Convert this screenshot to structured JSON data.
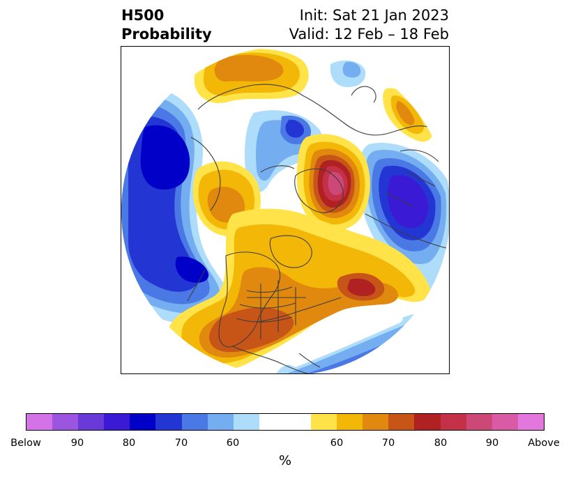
{
  "title": {
    "variable": "H500",
    "subtitle": "Probability",
    "init": "Init: Sat 21 Jan 2023",
    "valid": "Valid: 12 Feb – 18 Feb"
  },
  "colorbar": {
    "colors": [
      "#d472e8",
      "#9b55e0",
      "#6a3ad8",
      "#3a1ad4",
      "#0000c8",
      "#2336d4",
      "#4a78e4",
      "#74aef0",
      "#aedcfb",
      "#ffffff",
      "#ffffff",
      "#ffe348",
      "#f2b707",
      "#e0890e",
      "#c85518",
      "#b02222",
      "#c33048",
      "#cc4877",
      "#d95aa5",
      "#e278de"
    ],
    "tick_labels": [
      "Below",
      "90",
      "80",
      "70",
      "60",
      "60",
      "70",
      "80",
      "90",
      "Above"
    ],
    "unit": "%"
  },
  "icons": {
    "map": "polar-stereographic-map"
  }
}
